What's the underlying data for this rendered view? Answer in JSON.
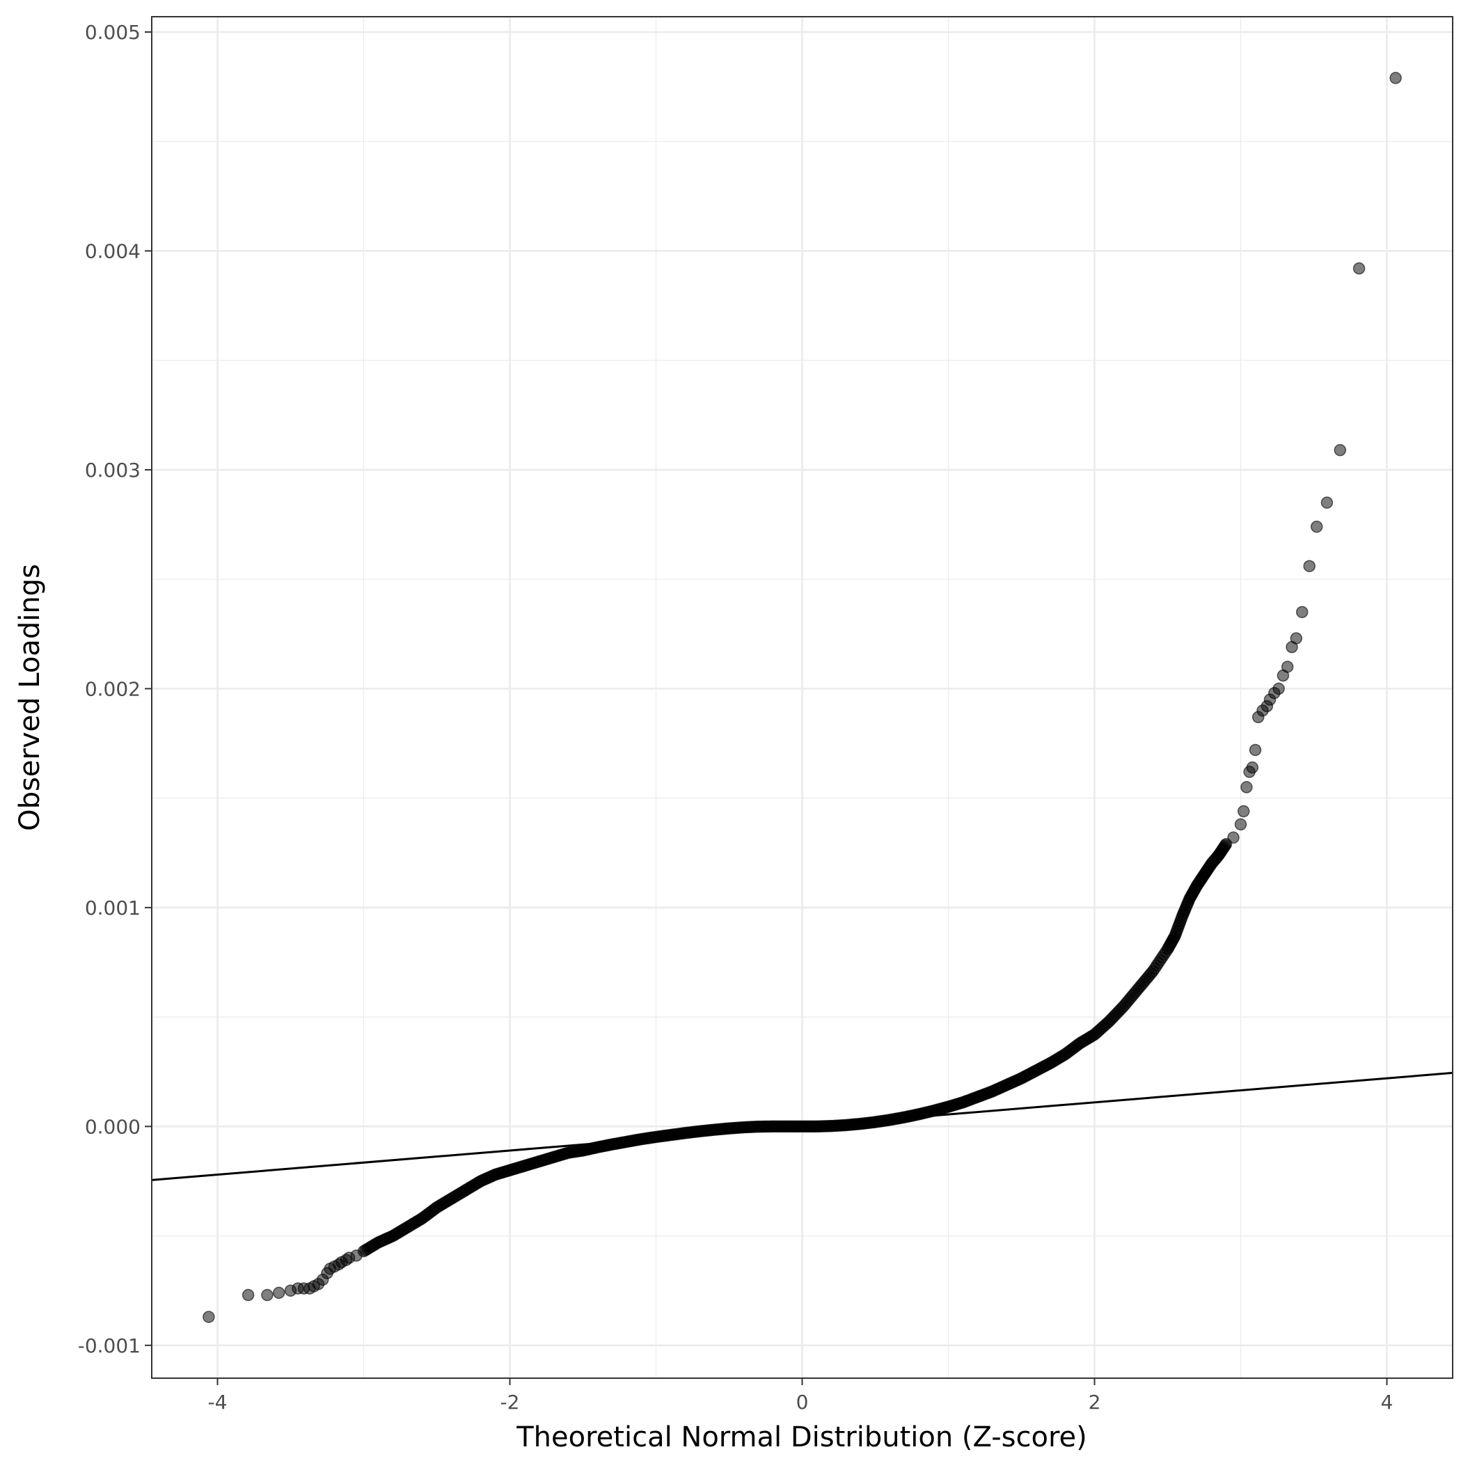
{
  "chart_data": {
    "type": "scatter",
    "title": "",
    "xlabel": "Theoretical Normal Distribution (Z-score)",
    "ylabel": "Observed Loadings",
    "xlim": [
      -4.45,
      4.45
    ],
    "ylim": [
      -0.00115,
      0.00507
    ],
    "x_ticks": [
      -4,
      -2,
      0,
      2,
      4
    ],
    "x_tick_labels": [
      "-4",
      "-2",
      "0",
      "2",
      "4"
    ],
    "y_ticks": [
      -0.001,
      0.0,
      0.001,
      0.002,
      0.003,
      0.004,
      0.005
    ],
    "y_tick_labels": [
      "-0.001",
      "0.000",
      "0.001",
      "0.002",
      "0.003",
      "0.004",
      "0.005"
    ],
    "grid": true,
    "legend": "none",
    "theme": "ggplot2 bw",
    "colors": {
      "point": "#000000",
      "line": "#000000",
      "grid": "#ebebeb",
      "panel_border": "#333333"
    },
    "point_alpha": 0.5,
    "reference_line": {
      "slope": 5.5e-05,
      "intercept": 0.0
    },
    "series": [
      {
        "x": [
          -4.06,
          -3.79,
          -3.66,
          -3.58,
          -3.5,
          -3.45,
          -3.41,
          -3.37,
          -3.34,
          -3.31,
          -3.28,
          -3.25,
          -3.23,
          -3.2,
          -3.17,
          -3.15,
          -3.12,
          -3.1,
          -3.05,
          -3.0,
          -2.9,
          -2.8,
          -2.7,
          -2.6,
          -2.5,
          -2.4,
          -2.3,
          -2.2,
          -2.1,
          -2.0,
          -1.9,
          -1.8,
          -1.7,
          -1.6,
          -1.5,
          -1.4,
          -1.3,
          -1.2,
          -1.1,
          -1.0,
          -0.9,
          -0.8,
          -0.7,
          -0.6,
          -0.5,
          -0.4,
          -0.3,
          -0.2,
          -0.1,
          0.0,
          0.1,
          0.2,
          0.3,
          0.4,
          0.5,
          0.6,
          0.7,
          0.8,
          0.9,
          1.0,
          1.1,
          1.2,
          1.3,
          1.4,
          1.5,
          1.6,
          1.7,
          1.8,
          1.9,
          2.0,
          2.1,
          2.2,
          2.3,
          2.4,
          2.5,
          2.55,
          2.6,
          2.65,
          2.7,
          2.75,
          2.8,
          2.85,
          2.9,
          2.95,
          3.0,
          3.02,
          3.04,
          3.06,
          3.08,
          3.1,
          3.12,
          3.15,
          3.18,
          3.2,
          3.23,
          3.26,
          3.29,
          3.32,
          3.35,
          3.38,
          3.42,
          3.47,
          3.52,
          3.59,
          3.68,
          3.81,
          4.06
        ],
        "y": [
          -0.00087,
          -0.00077,
          -0.00077,
          -0.00076,
          -0.00075,
          -0.00074,
          -0.00074,
          -0.00074,
          -0.00073,
          -0.00072,
          -0.0007,
          -0.00067,
          -0.00065,
          -0.00064,
          -0.00063,
          -0.00062,
          -0.00061,
          -0.0006,
          -0.00059,
          -0.00057,
          -0.00053,
          -0.0005,
          -0.00046,
          -0.00042,
          -0.00037,
          -0.00033,
          -0.00029,
          -0.00025,
          -0.00022,
          -0.0002,
          -0.00018,
          -0.00016,
          -0.00014,
          -0.00012,
          -0.00011,
          -9.5e-05,
          -8.2e-05,
          -7e-05,
          -5.8e-05,
          -4.8e-05,
          -3.9e-05,
          -3e-05,
          -2.2e-05,
          -1.5e-05,
          -9e-06,
          -4e-06,
          -1e-06,
          0.0,
          0.0,
          0.0,
          0.0,
          2e-06,
          6e-06,
          1.2e-05,
          2e-05,
          3e-05,
          4.2e-05,
          5.6e-05,
          7.2e-05,
          9e-05,
          0.00011,
          0.000135,
          0.00016,
          0.00019,
          0.00022,
          0.000255,
          0.00029,
          0.00033,
          0.00038,
          0.00042,
          0.00048,
          0.00055,
          0.00063,
          0.00071,
          0.00081,
          0.00087,
          0.00096,
          0.00104,
          0.0011,
          0.00115,
          0.0012,
          0.00124,
          0.00129,
          0.00132,
          0.00138,
          0.00144,
          0.00155,
          0.00162,
          0.00164,
          0.00172,
          0.00187,
          0.0019,
          0.00192,
          0.00195,
          0.00198,
          0.002,
          0.00206,
          0.0021,
          0.00219,
          0.00223,
          0.00235,
          0.00256,
          0.00274,
          0.00285,
          0.00309,
          0.00392,
          0.00479
        ]
      }
    ]
  }
}
